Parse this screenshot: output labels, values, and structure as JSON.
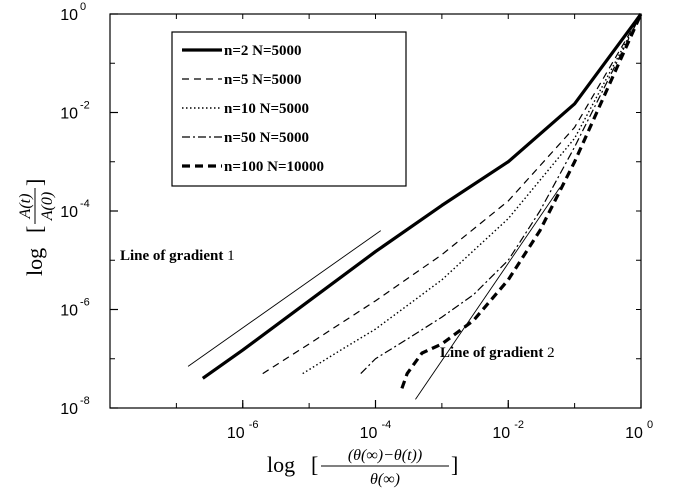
{
  "chart_data": {
    "type": "line",
    "xscale": "log",
    "yscale": "log",
    "xlim": [
      1e-08,
      1
    ],
    "ylim": [
      1e-08,
      1
    ],
    "x_ticks": [
      {
        "base": "10",
        "exp": "-6",
        "value": 1e-06
      },
      {
        "base": "10",
        "exp": "-4",
        "value": 0.0001
      },
      {
        "base": "10",
        "exp": "-2",
        "value": 0.01
      },
      {
        "base": "10",
        "exp": "0",
        "value": 1
      }
    ],
    "y_ticks": [
      {
        "base": "10",
        "exp": "-8",
        "value": 1e-08
      },
      {
        "base": "10",
        "exp": "-6",
        "value": 1e-06
      },
      {
        "base": "10",
        "exp": "-4",
        "value": 0.0001
      },
      {
        "base": "10",
        "exp": "-2",
        "value": 0.01
      },
      {
        "base": "10",
        "exp": "0",
        "value": 1
      }
    ],
    "xlabel": {
      "log": "log",
      "numerator": "(θ(∞)−θ(t))",
      "denominator": "θ(∞)"
    },
    "ylabel": {
      "log": "log",
      "numerator": "A(t)",
      "denominator": "A(0)"
    },
    "legend_position": "top-left",
    "grid": false,
    "series": [
      {
        "name": "n=2 N=5000",
        "style": "solid-thick",
        "x": [
          2.5e-07,
          1e-06,
          1e-05,
          0.0001,
          0.001,
          0.01,
          0.1,
          1
        ],
        "y": [
          4e-08,
          1.5e-07,
          1.5e-06,
          1.5e-05,
          0.00013,
          0.001,
          0.015,
          1
        ]
      },
      {
        "name": "n=5 N=5000",
        "style": "dashed",
        "x": [
          2e-06,
          1e-05,
          0.0001,
          0.001,
          0.01,
          0.1,
          1
        ],
        "y": [
          5e-08,
          2e-07,
          1.5e-06,
          1.3e-05,
          0.00016,
          0.005,
          1
        ]
      },
      {
        "name": "n=10 N=5000",
        "style": "dotted",
        "x": [
          8e-06,
          3e-05,
          0.0001,
          0.001,
          0.01,
          0.1,
          1
        ],
        "y": [
          5e-08,
          1.5e-07,
          4e-07,
          4e-06,
          7e-05,
          0.003,
          1
        ]
      },
      {
        "name": "n=50 N=5000",
        "style": "dash-dot",
        "x": [
          6e-05,
          0.0001,
          0.0003,
          0.001,
          0.003,
          0.01,
          0.03,
          0.1,
          1
        ],
        "y": [
          5e-08,
          1e-07,
          2.5e-07,
          7e-07,
          2e-06,
          1e-05,
          0.0001,
          0.002,
          1
        ]
      },
      {
        "name": "n=100 N=10000",
        "style": "dashed-thick",
        "x": [
          0.00025,
          0.0003,
          0.0005,
          0.001,
          0.003,
          0.01,
          0.03,
          0.1,
          1
        ],
        "y": [
          2.5e-08,
          5e-08,
          1.3e-07,
          2e-07,
          6e-07,
          4e-06,
          4e-05,
          0.001,
          1
        ]
      }
    ],
    "reference_lines": [
      {
        "label_prefix": "Line of gradient",
        "label_value": "1",
        "gradient": 1,
        "x": [
          1.5e-07,
          0.00012
        ],
        "y": [
          7e-08,
          4e-05
        ]
      },
      {
        "label_prefix": "Line of gradient",
        "label_value": "2",
        "gradient": 2,
        "x": [
          0.0004,
          0.06
        ],
        "y": [
          1.5e-08,
          0.0003
        ]
      }
    ]
  }
}
